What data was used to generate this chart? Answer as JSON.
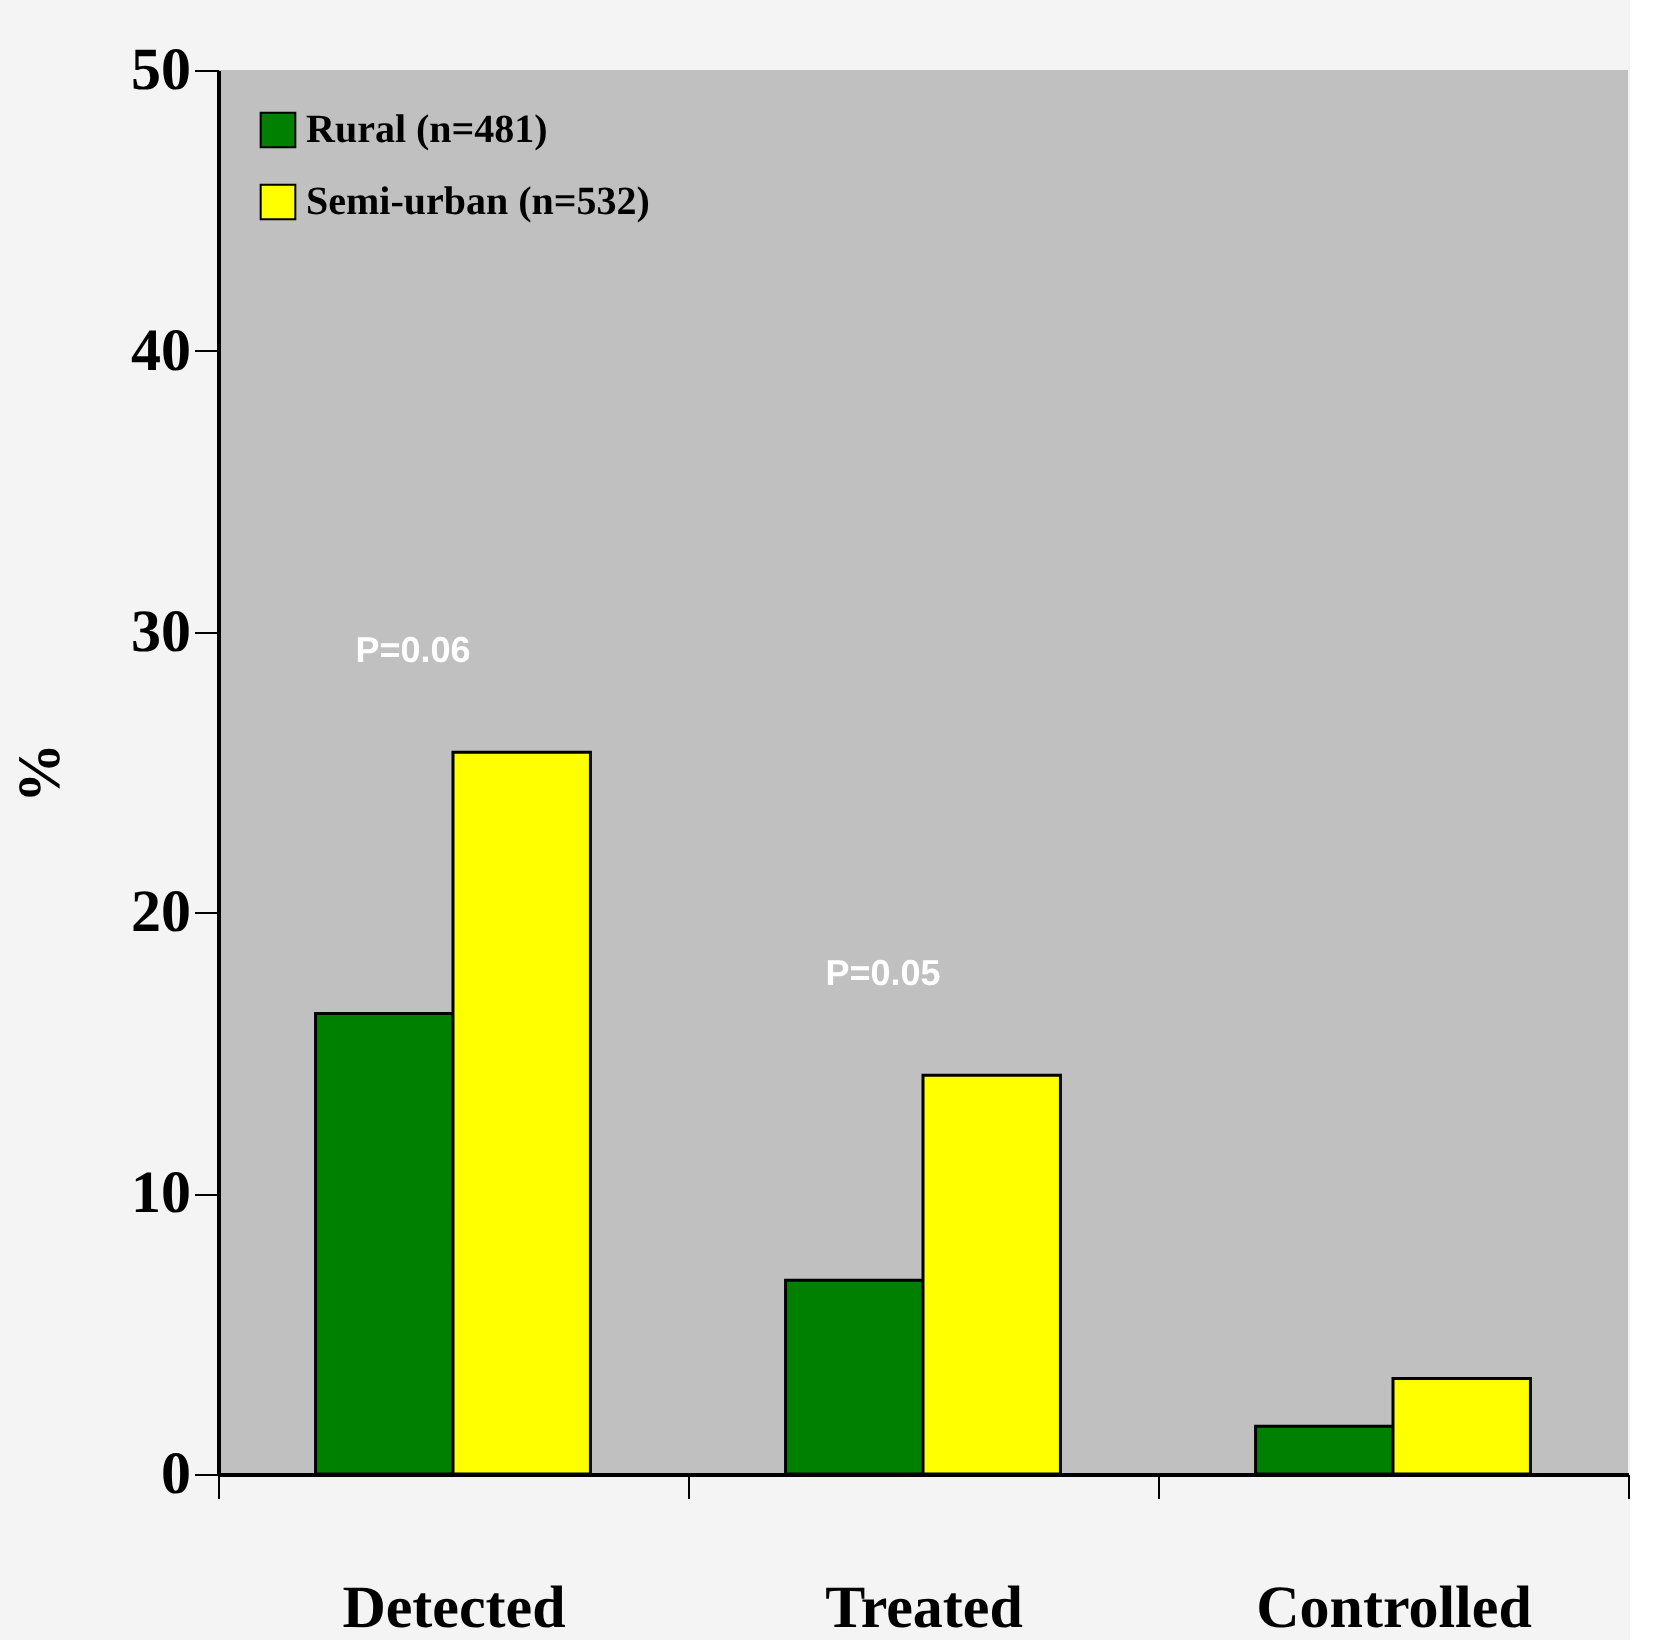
{
  "chart_data": {
    "type": "bar",
    "ylabel": "%",
    "categories": [
      "Detected",
      "Treated",
      "Controlled"
    ],
    "series": [
      {
        "name": "Rural (n=481)",
        "color": "#008000",
        "values": [
          16.4,
          6.9,
          1.7
        ]
      },
      {
        "name": "Semi-urban (n=532)",
        "color": "#ffff00",
        "values": [
          25.7,
          14.2,
          3.4
        ]
      }
    ],
    "ylim": [
      0,
      50
    ],
    "yticks": [
      0,
      10,
      20,
      30,
      40,
      50
    ],
    "grid": false,
    "legend": "top left",
    "annotations": [
      "P=0.06",
      "P=0.05"
    ]
  }
}
